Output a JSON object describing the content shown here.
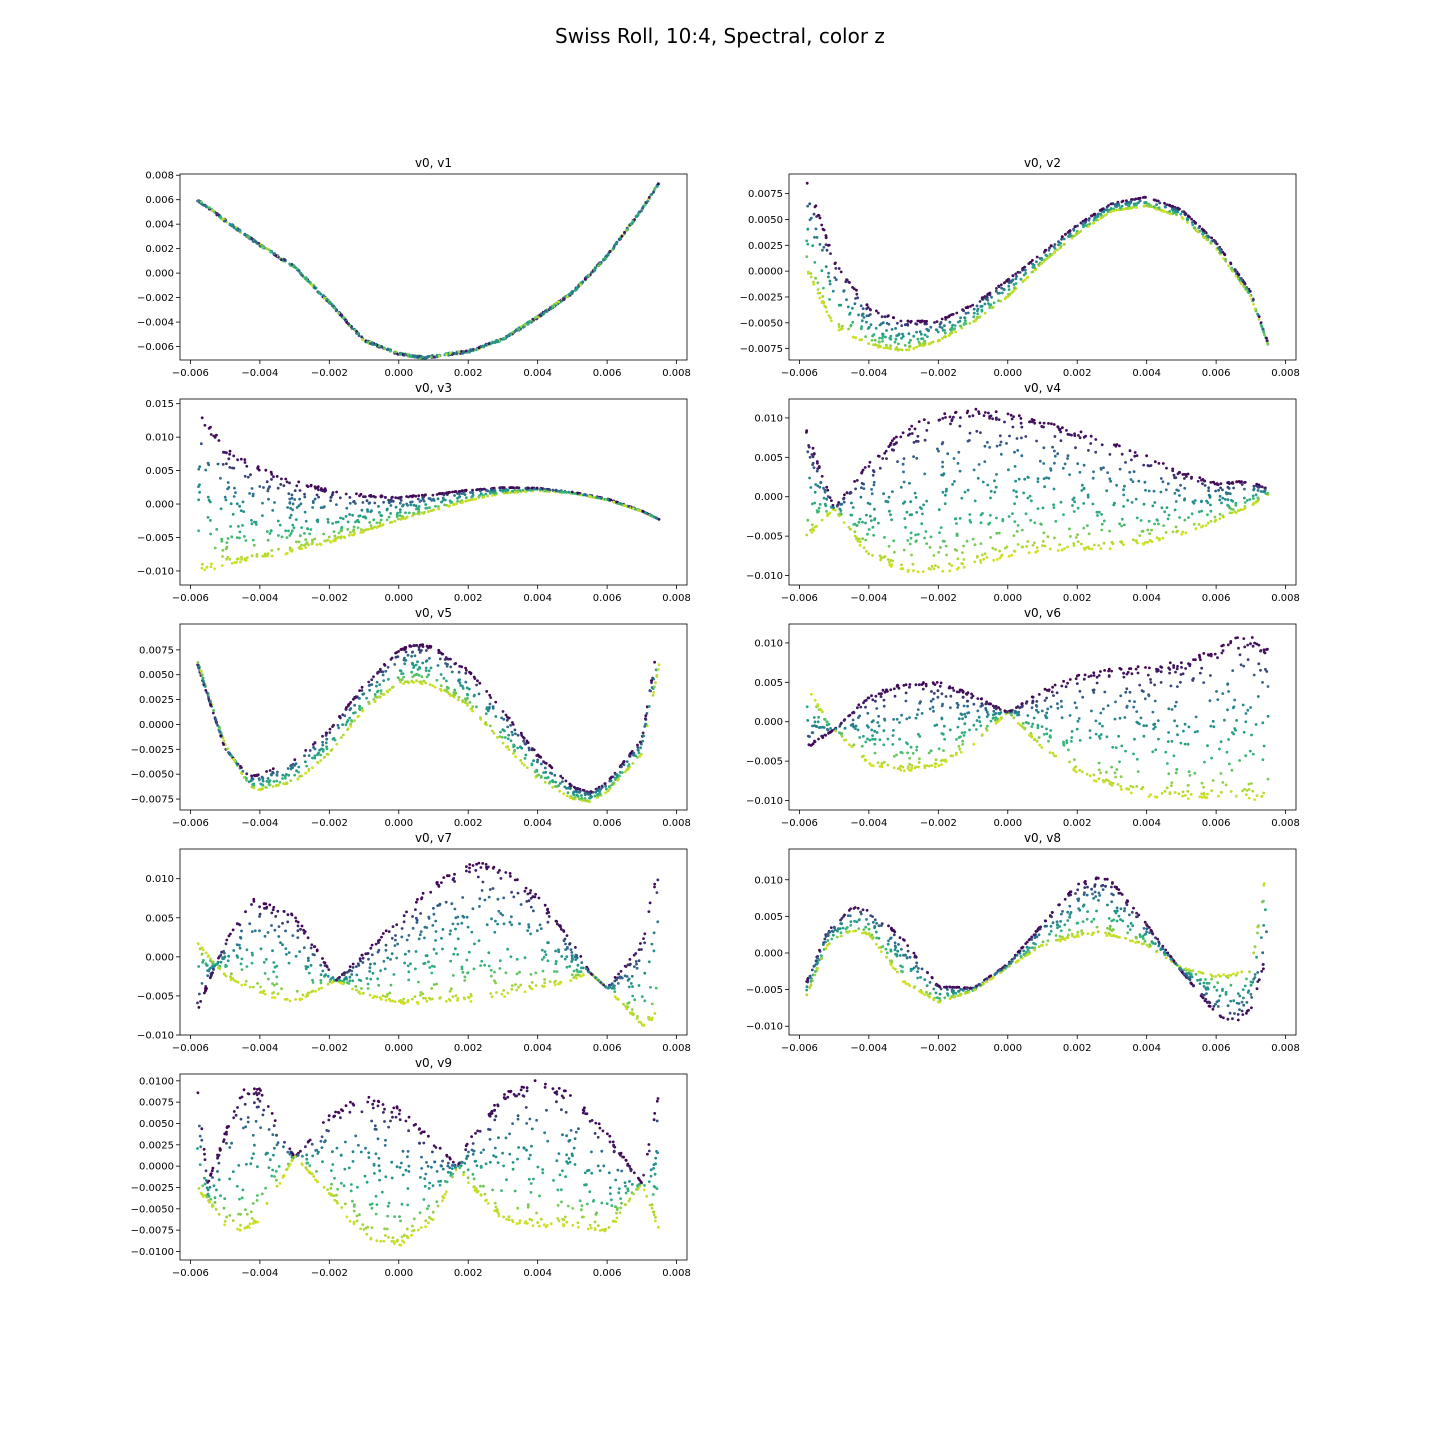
{
  "figure": {
    "suptitle": "Swiss Roll, 10:4, Spectral, color z"
  },
  "colors": {
    "low": "#440154",
    "mid_low": "#31688e",
    "mid": "#21918c",
    "mid_high": "#35b779",
    "high": "#d6e21f",
    "axis": "#000000"
  },
  "chart_data": [
    {
      "type": "scatter",
      "title": "v0, v1",
      "xlim": [
        -0.0063,
        0.0083
      ],
      "ylim": [
        -0.0071,
        0.0081
      ],
      "xticks": [
        "-0.006",
        "-0.004",
        "-0.002",
        "0.000",
        "0.002",
        "0.004",
        "0.006",
        "0.008"
      ],
      "yticks": [
        "-0.006",
        "-0.004",
        "-0.002",
        "0.000",
        "0.002",
        "0.004",
        "0.006",
        "0.008"
      ],
      "color_by": "z (viridis, dark purple low to yellow high)",
      "x": [
        -0.0058,
        -0.005,
        -0.004,
        -0.003,
        -0.002,
        -0.001,
        0.0,
        0.0007,
        0.001,
        0.002,
        0.003,
        0.004,
        0.005,
        0.006,
        0.007,
        0.0075
      ],
      "y": [
        0.006,
        0.0043,
        0.0023,
        0.0005,
        -0.0024,
        -0.0055,
        -0.0066,
        -0.0069,
        -0.0068,
        -0.0064,
        -0.0054,
        -0.0036,
        -0.0016,
        0.0014,
        0.0052,
        0.0074
      ]
    },
    {
      "type": "scatter",
      "title": "v0, v2",
      "xlim": [
        -0.0063,
        0.0083
      ],
      "ylim": [
        -0.0086,
        0.0094
      ],
      "xticks": [
        "-0.006",
        "-0.004",
        "-0.002",
        "0.000",
        "0.002",
        "0.004",
        "0.006",
        "0.008"
      ],
      "yticks": [
        "-0.0075",
        "-0.0050",
        "-0.0025",
        "0.0000",
        "0.0025",
        "0.0050",
        "0.0075"
      ],
      "color_by": "z (viridis, dark purple low to yellow high)",
      "x": [
        -0.0058,
        -0.005,
        -0.004,
        -0.003,
        -0.002,
        -0.001,
        0.0,
        0.001,
        0.002,
        0.003,
        0.004,
        0.005,
        0.006,
        0.007,
        0.0075
      ],
      "y_upper": [
        0.009,
        0.0012,
        -0.0035,
        -0.0048,
        -0.0048,
        -0.0032,
        -0.0008,
        0.0018,
        0.0045,
        0.0066,
        0.0072,
        0.006,
        0.0028,
        -0.002,
        -0.007
      ],
      "y_lower": [
        0.0,
        -0.0055,
        -0.0072,
        -0.0078,
        -0.0068,
        -0.005,
        -0.0025,
        0.0008,
        0.0036,
        0.0058,
        0.0063,
        0.0052,
        0.0022,
        -0.0025,
        -0.0072
      ]
    },
    {
      "type": "scatter",
      "title": "v0, v3",
      "xlim": [
        -0.0063,
        0.0083
      ],
      "ylim": [
        -0.0121,
        0.0157
      ],
      "xticks": [
        "-0.006",
        "-0.004",
        "-0.002",
        "0.000",
        "0.002",
        "0.004",
        "0.006",
        "0.008"
      ],
      "yticks": [
        "-0.010",
        "-0.005",
        "0.000",
        "0.005",
        "0.010",
        "0.015"
      ],
      "color_by": "z (viridis, dark purple low to yellow high)",
      "x": [
        -0.0058,
        -0.005,
        -0.004,
        -0.003,
        -0.002,
        -0.001,
        0.0,
        0.001,
        0.002,
        0.003,
        0.004,
        0.005,
        0.006,
        0.007,
        0.0075
      ],
      "y_upper": [
        0.0145,
        0.0085,
        0.0055,
        0.0035,
        0.0022,
        0.0014,
        0.0011,
        0.0015,
        0.0021,
        0.0025,
        0.0024,
        0.0018,
        0.0008,
        -0.001,
        -0.0023
      ],
      "y_lower": [
        -0.0105,
        -0.0092,
        -0.0084,
        -0.0072,
        -0.0058,
        -0.0042,
        -0.0025,
        -0.001,
        0.0005,
        0.0016,
        0.002,
        0.0016,
        0.0006,
        -0.0011,
        -0.0023
      ]
    },
    {
      "type": "scatter",
      "title": "v0, v4",
      "xlim": [
        -0.0063,
        0.0083
      ],
      "ylim": [
        -0.0112,
        0.0124
      ],
      "xticks": [
        "-0.006",
        "-0.004",
        "-0.002",
        "0.000",
        "0.002",
        "0.004",
        "0.006",
        "0.008"
      ],
      "yticks": [
        "-0.010",
        "-0.005",
        "0.000",
        "0.005",
        "0.010"
      ],
      "color_by": "z (viridis, dark purple low to yellow high)",
      "x": [
        -0.0058,
        -0.005,
        -0.004,
        -0.003,
        -0.002,
        -0.001,
        0.0,
        0.001,
        0.002,
        0.003,
        0.004,
        0.005,
        0.006,
        0.007,
        0.0075
      ],
      "y_upper": [
        0.0088,
        -0.0015,
        0.0045,
        0.0085,
        0.0108,
        0.0112,
        0.0108,
        0.0098,
        0.0085,
        0.007,
        0.0052,
        0.0032,
        0.0018,
        0.002,
        0.001
      ],
      "y_lower": [
        -0.0055,
        -0.0015,
        -0.0078,
        -0.0095,
        -0.0098,
        -0.0088,
        -0.0076,
        -0.007,
        -0.0068,
        -0.0066,
        -0.006,
        -0.0048,
        -0.0032,
        -0.0012,
        0.0003
      ]
    },
    {
      "type": "scatter",
      "title": "v0, v5",
      "xlim": [
        -0.0063,
        0.0083
      ],
      "ylim": [
        -0.0086,
        0.0101
      ],
      "xticks": [
        "-0.006",
        "-0.004",
        "-0.002",
        "0.000",
        "0.002",
        "0.004",
        "0.006",
        "0.008"
      ],
      "yticks": [
        "-0.0075",
        "-0.0050",
        "-0.0025",
        "0.0000",
        "0.0025",
        "0.0050",
        "0.0075"
      ],
      "color_by": "z (viridis, dark purple low to yellow high)",
      "x": [
        -0.0058,
        -0.005,
        -0.0043,
        -0.004,
        -0.003,
        -0.002,
        -0.001,
        0.0,
        0.0005,
        0.001,
        0.002,
        0.003,
        0.004,
        0.005,
        0.0055,
        0.006,
        0.007,
        0.0075
      ],
      "y_upper": [
        0.006,
        -0.0025,
        -0.0052,
        -0.005,
        -0.0035,
        -0.0005,
        0.004,
        0.0075,
        0.0082,
        0.0078,
        0.0055,
        0.0015,
        -0.003,
        -0.0062,
        -0.0068,
        -0.0058,
        -0.0015,
        0.0092
      ],
      "y_lower": [
        0.0065,
        -0.002,
        -0.0063,
        -0.0066,
        -0.0058,
        -0.003,
        0.0015,
        0.004,
        0.0042,
        0.0038,
        0.0018,
        -0.002,
        -0.0055,
        -0.0075,
        -0.0078,
        -0.0068,
        -0.003,
        0.006
      ]
    },
    {
      "type": "scatter",
      "title": "v0, v6",
      "xlim": [
        -0.0063,
        0.0083
      ],
      "ylim": [
        -0.0112,
        0.0124
      ],
      "xticks": [
        "-0.006",
        "-0.004",
        "-0.002",
        "0.000",
        "0.002",
        "0.004",
        "0.006",
        "0.008"
      ],
      "yticks": [
        "-0.010",
        "-0.005",
        "0.000",
        "0.005",
        "0.010"
      ],
      "color_by": "z (viridis, dark purple low to yellow high)",
      "x": [
        -0.0058,
        -0.005,
        -0.004,
        -0.003,
        -0.002,
        -0.001,
        0.0,
        0.001,
        0.002,
        0.003,
        0.004,
        0.005,
        0.006,
        0.0065,
        0.007,
        0.0075
      ],
      "y_upper": [
        -0.0035,
        -0.001,
        0.0035,
        0.005,
        0.0052,
        0.0035,
        0.0012,
        0.004,
        0.006,
        0.0068,
        0.0072,
        0.0078,
        0.0092,
        0.0112,
        0.0108,
        0.0095
      ],
      "y_lower": [
        0.0045,
        -0.001,
        -0.0055,
        -0.0063,
        -0.0058,
        -0.003,
        0.0012,
        -0.0035,
        -0.0065,
        -0.0085,
        -0.0095,
        -0.0098,
        -0.0098,
        -0.0098,
        -0.0098,
        -0.0102
      ]
    },
    {
      "type": "scatter",
      "title": "v0, v7",
      "xlim": [
        -0.0063,
        0.0083
      ],
      "ylim": [
        -0.01,
        0.0138
      ],
      "xticks": [
        "-0.006",
        "-0.004",
        "-0.002",
        "0.000",
        "0.002",
        "0.004",
        "0.006",
        "0.008"
      ],
      "yticks": [
        "-0.010",
        "-0.005",
        "0.000",
        "0.005",
        "0.010"
      ],
      "color_by": "z (viridis, dark purple low to yellow high)",
      "x": [
        -0.0058,
        -0.005,
        -0.0042,
        -0.003,
        -0.0018,
        -0.001,
        0.0,
        0.001,
        0.002,
        0.0025,
        0.003,
        0.004,
        0.005,
        0.0055,
        0.006,
        0.007,
        0.0075
      ],
      "y_upper": [
        -0.007,
        0.002,
        0.0075,
        0.0055,
        -0.003,
        0.0005,
        0.005,
        0.0095,
        0.0118,
        0.0122,
        0.0115,
        0.008,
        0.002,
        -0.002,
        -0.004,
        0.002,
        0.0128
      ],
      "y_lower": [
        0.002,
        -0.0025,
        -0.0045,
        -0.006,
        -0.003,
        -0.005,
        -0.006,
        -0.006,
        -0.0058,
        -0.0056,
        -0.0052,
        -0.0042,
        -0.003,
        -0.002,
        -0.004,
        -0.009,
        -0.0078
      ]
    },
    {
      "type": "scatter",
      "title": "v0, v8",
      "xlim": [
        -0.0063,
        0.0083
      ],
      "ylim": [
        -0.0112,
        0.0142
      ],
      "xticks": [
        "-0.006",
        "-0.004",
        "-0.002",
        "0.000",
        "0.002",
        "0.004",
        "0.006",
        "0.008"
      ],
      "yticks": [
        "-0.010",
        "-0.005",
        "0.000",
        "0.005",
        "0.010"
      ],
      "color_by": "z (viridis, dark purple low to yellow high)",
      "x": [
        -0.0058,
        -0.0052,
        -0.0045,
        -0.004,
        -0.003,
        -0.002,
        -0.001,
        0.0,
        0.001,
        0.002,
        0.0027,
        0.003,
        0.004,
        0.005,
        0.006,
        0.0065,
        0.007,
        0.0075
      ],
      "y_upper": [
        -0.004,
        0.003,
        0.0063,
        0.006,
        0.002,
        -0.0045,
        -0.0048,
        -0.0015,
        0.004,
        0.0095,
        0.0105,
        0.0098,
        0.004,
        -0.0025,
        -0.0085,
        -0.0098,
        -0.0078,
        0.0
      ],
      "y_lower": [
        -0.006,
        0.001,
        0.003,
        0.0025,
        -0.004,
        -0.0068,
        -0.0052,
        -0.002,
        0.001,
        0.0022,
        0.0025,
        0.0022,
        0.001,
        -0.002,
        -0.003,
        -0.0028,
        -0.002,
        0.0133
      ]
    },
    {
      "type": "scatter",
      "title": "v0, v9",
      "xlim": [
        -0.0063,
        0.0083
      ],
      "ylim": [
        -0.011,
        0.0108
      ],
      "xticks": [
        "-0.006",
        "-0.004",
        "-0.002",
        "0.000",
        "0.002",
        "0.004",
        "0.006",
        "0.008"
      ],
      "yticks": [
        "-0.0100",
        "-0.0075",
        "-0.0050",
        "-0.0025",
        "0.0000",
        "0.0025",
        "0.0050",
        "0.0075",
        "0.0100"
      ],
      "color_by": "z (viridis, dark purple low to yellow high)",
      "x": [
        -0.0058,
        -0.0055,
        -0.005,
        -0.0045,
        -0.004,
        -0.003,
        -0.002,
        -0.001,
        0.0,
        0.001,
        0.0017,
        0.002,
        0.003,
        0.004,
        0.005,
        0.006,
        0.0065,
        0.007,
        0.0075
      ],
      "y_upper": [
        0.0095,
        -0.002,
        0.004,
        0.009,
        0.0092,
        0.001,
        0.006,
        0.0085,
        0.007,
        0.003,
        0.0,
        0.003,
        0.0085,
        0.0102,
        0.0085,
        0.004,
        0.001,
        -0.002,
        0.0092
      ],
      "y_lower": [
        -0.003,
        -0.004,
        -0.007,
        -0.0078,
        -0.0065,
        0.0012,
        -0.0035,
        -0.0085,
        -0.0095,
        -0.0065,
        0.0,
        -0.002,
        -0.0065,
        -0.0072,
        -0.007,
        -0.008,
        -0.005,
        -0.002,
        -0.008
      ]
    }
  ]
}
